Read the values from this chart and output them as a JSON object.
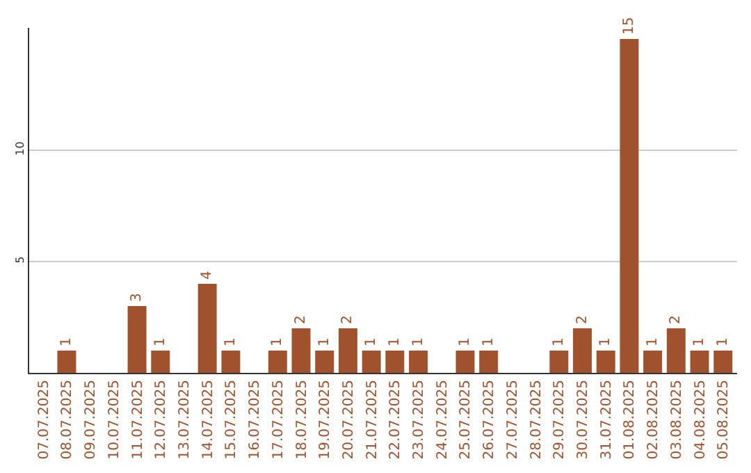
{
  "chart_data": {
    "type": "bar",
    "categories": [
      "07.07.2025",
      "08.07.2025",
      "09.07.2025",
      "10.07.2025",
      "11.07.2025",
      "12.07.2025",
      "13.07.2025",
      "14.07.2025",
      "15.07.2025",
      "16.07.2025",
      "17.07.2025",
      "18.07.2025",
      "19.07.2025",
      "20.07.2025",
      "21.07.2025",
      "22.07.2025",
      "23.07.2025",
      "24.07.2025",
      "25.07.2025",
      "26.07.2025",
      "27.07.2025",
      "28.07.2025",
      "29.07.2025",
      "30.07.2025",
      "31.07.2025",
      "01.08.2025",
      "02.08.2025",
      "03.08.2025",
      "04.08.2025",
      "05.08.2025"
    ],
    "values": [
      0,
      1,
      0,
      0,
      3,
      1,
      0,
      4,
      1,
      0,
      1,
      2,
      1,
      2,
      1,
      1,
      1,
      0,
      1,
      1,
      0,
      0,
      1,
      2,
      1,
      15,
      1,
      2,
      1,
      1
    ],
    "value_labels": [
      null,
      "1",
      null,
      null,
      "3",
      "1",
      null,
      "4",
      "1",
      null,
      "1",
      "2",
      "1",
      "2",
      "1",
      "1",
      "1",
      null,
      "1",
      "1",
      null,
      null,
      "1",
      "2",
      "1",
      "15",
      "1",
      "2",
      "1",
      "1"
    ],
    "color": "#a0522d",
    "ylim": [
      0,
      15.5
    ],
    "yticks": [
      5,
      10
    ],
    "grid": "y"
  }
}
